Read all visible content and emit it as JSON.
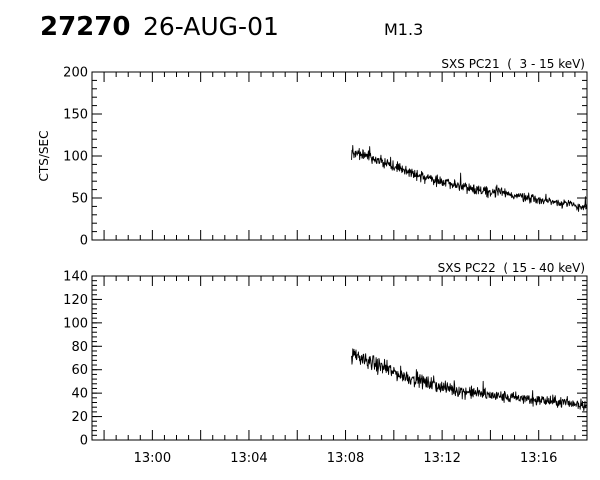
{
  "header": {
    "event_number": "27270",
    "date": "26-AUG-01",
    "flare_class": "M1.3"
  },
  "colors": {
    "ink": "#000000",
    "background": "#ffffff"
  },
  "chart_data": [
    {
      "type": "line",
      "title": "SXS PC21  (  3 - 15 keV)",
      "ylabel": "CTS/SEC",
      "xlabel": "",
      "x_unit": "UT time (HH:MM)",
      "xlim": [
        "12:57:30",
        "13:18:00"
      ],
      "ylim": [
        0,
        200
      ],
      "yticks": [
        0,
        50,
        100,
        150,
        200
      ],
      "ytick_labels": [
        "0",
        "50",
        "100",
        "150",
        "200"
      ],
      "xtick_labels": [],
      "grid": false,
      "series": [
        {
          "x": [
            "13:08:15",
            "13:08:30",
            "13:09:00",
            "13:09:30",
            "13:10:00",
            "13:10:30",
            "13:11:00",
            "13:11:30",
            "13:12:00",
            "13:12:30",
            "13:13:00",
            "13:13:30",
            "13:14:00",
            "13:14:30",
            "13:15:00",
            "13:15:30",
            "13:16:00",
            "13:16:30",
            "13:17:00",
            "13:17:30",
            "13:18:00"
          ],
          "y": [
            105,
            104,
            100,
            93,
            88,
            82,
            76,
            73,
            70,
            66,
            63,
            60,
            58,
            56,
            53,
            51,
            48,
            46,
            44,
            41,
            38
          ]
        }
      ]
    },
    {
      "type": "line",
      "title": "SXS PC22  ( 15 - 40 keV)",
      "ylabel": "",
      "xlabel": "",
      "x_unit": "UT time (HH:MM)",
      "xlim": [
        "12:57:30",
        "13:18:00"
      ],
      "ylim": [
        0,
        140
      ],
      "yticks": [
        0,
        20,
        40,
        60,
        80,
        100,
        120,
        140
      ],
      "ytick_labels": [
        "0",
        "20",
        "40",
        "60",
        "80",
        "100",
        "120",
        "140"
      ],
      "xticks": [
        "13:00",
        "13:04",
        "13:08",
        "13:12",
        "13:16"
      ],
      "xtick_labels": [
        "13:00",
        "13:04",
        "13:08",
        "13:12",
        "13:16"
      ],
      "grid": false,
      "series": [
        {
          "x": [
            "13:08:15",
            "13:08:30",
            "13:09:00",
            "13:09:30",
            "13:10:00",
            "13:10:30",
            "13:11:00",
            "13:11:30",
            "13:12:00",
            "13:12:30",
            "13:13:00",
            "13:13:30",
            "13:14:00",
            "13:14:30",
            "13:15:00",
            "13:15:30",
            "13:16:00",
            "13:16:30",
            "13:17:00",
            "13:17:30",
            "13:18:00"
          ],
          "y": [
            72,
            71,
            67,
            62,
            58,
            54,
            51,
            48,
            45,
            43,
            41,
            40,
            38,
            37,
            36,
            35,
            34,
            33,
            32,
            31,
            30
          ]
        }
      ]
    }
  ]
}
